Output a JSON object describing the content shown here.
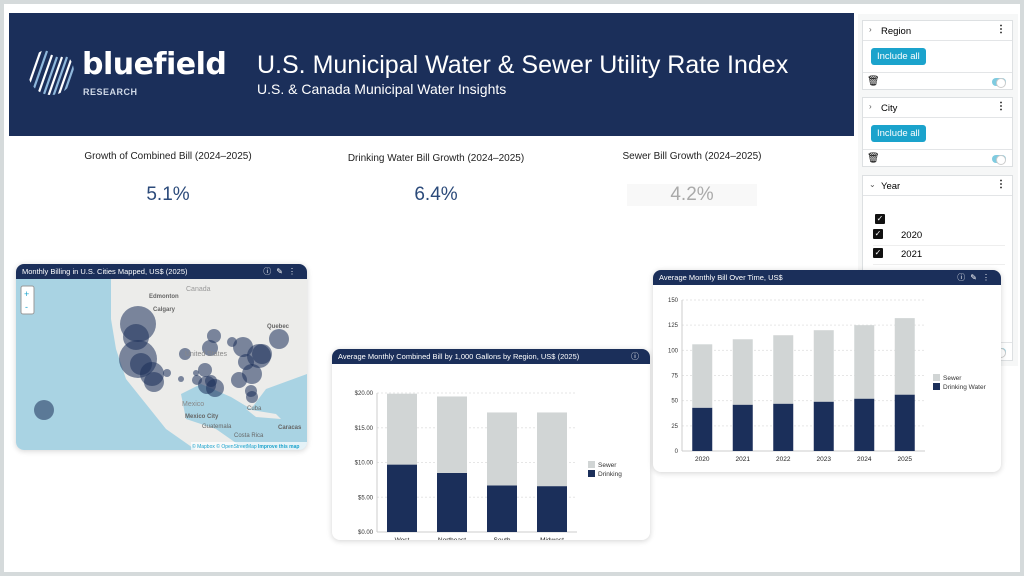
{
  "header": {
    "logo_word": "bluefield",
    "logo_sub": "RESEARCH",
    "title": "U.S. Municipal Water & Sewer Utility Rate Index",
    "subtitle": "U.S. & Canada Municipal Water Insights"
  },
  "kpis": [
    {
      "label": "Growth of Combined Bill (2024–2025)",
      "value": "5.1%"
    },
    {
      "label": "Drinking Water Bill Growth (2024–2025)",
      "value": "6.4%"
    },
    {
      "label": "Sewer Bill Growth (2024–2025)",
      "value": "4.2%"
    }
  ],
  "map": {
    "title": "Monthly Billing in U.S. Cities Mapped, US$ (2025)",
    "zoom_in": "+",
    "zoom_out": "-",
    "attribution_mapbox": "© Mapbox",
    "attribution_osm": "© OpenStreetMap",
    "improve": "Improve this map",
    "places": [
      "Canada",
      "Edmonton",
      "Calgary",
      "Quebec",
      "United States",
      "Mexico",
      "Mexico City",
      "Cuba",
      "Guatemala",
      "Costa Rica",
      "Caracas"
    ]
  },
  "sidebar": {
    "region": {
      "label": "Region",
      "button": "Include all"
    },
    "city": {
      "label": "City",
      "button": "Include all"
    },
    "year": {
      "label": "Year",
      "items": [
        "2020",
        "2021"
      ]
    }
  },
  "colors": {
    "header": "#1b2f5a",
    "drinking": "#1b2f5a",
    "sewer": "#d1d5d5",
    "accent": "#1ba3cc"
  },
  "chart_data": [
    {
      "type": "bar",
      "stacked": true,
      "title": "Average Monthly Combined Bill by 1,000 Gallons by Region, US$ (2025)",
      "categories": [
        "West",
        "Northeast",
        "South",
        "Midwest"
      ],
      "series": [
        {
          "name": "Drinking",
          "values": [
            9.7,
            8.5,
            6.7,
            6.6
          ]
        },
        {
          "name": "Sewer",
          "values": [
            10.2,
            11.0,
            10.5,
            10.6
          ]
        }
      ],
      "ylim": [
        0,
        20
      ],
      "yticks": [
        "$0.00",
        "$5.00",
        "$10.00",
        "$15.00",
        "$20.00"
      ],
      "legend": "right",
      "grid": true
    },
    {
      "type": "bar",
      "stacked": true,
      "title": "Average Monthly Bill Over Time, US$",
      "categories": [
        "2020",
        "2021",
        "2022",
        "2023",
        "2024",
        "2025"
      ],
      "series": [
        {
          "name": "Drinking Water",
          "values": [
            43,
            46,
            47,
            49,
            52,
            56
          ]
        },
        {
          "name": "Sewer",
          "values": [
            63,
            65,
            68,
            71,
            73,
            76
          ]
        }
      ],
      "ylim": [
        0,
        150
      ],
      "yticks": [
        "0",
        "25",
        "50",
        "75",
        "100",
        "125",
        "150"
      ],
      "legend": "right",
      "grid": true
    }
  ]
}
